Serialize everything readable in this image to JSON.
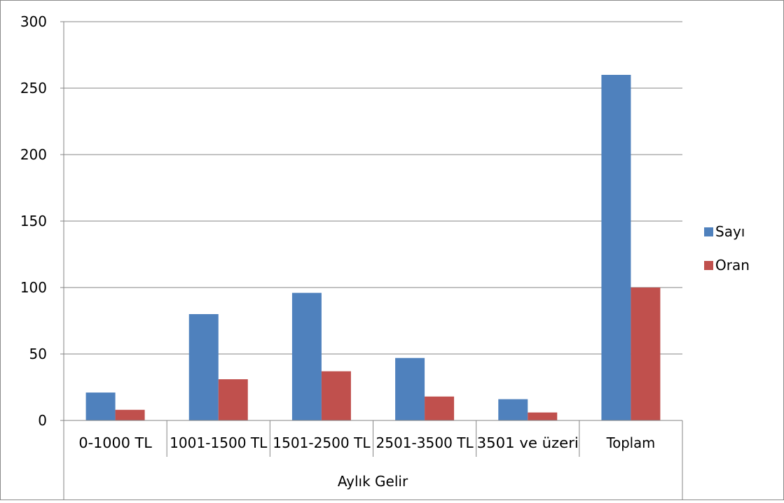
{
  "chart_data": {
    "type": "bar",
    "categories": [
      "0-1000 TL",
      "1001-1500 TL",
      "1501-2500 TL",
      "2501-3500 TL",
      "3501 ve üzeri",
      "Toplam"
    ],
    "series": [
      {
        "name": "Sayı",
        "color": "#4F81BD",
        "values": [
          21,
          80,
          96,
          47,
          16,
          260
        ]
      },
      {
        "name": "Oran",
        "color": "#C0504D",
        "values": [
          8,
          31,
          37,
          18,
          6,
          100
        ]
      }
    ],
    "title": "",
    "xlabel": "Aylık Gelir",
    "ylabel": "",
    "ylim": [
      0,
      300
    ],
    "yticks": [
      "0",
      "50",
      "100",
      "150",
      "200",
      "250",
      "300"
    ],
    "grid": true,
    "legend": "right"
  }
}
